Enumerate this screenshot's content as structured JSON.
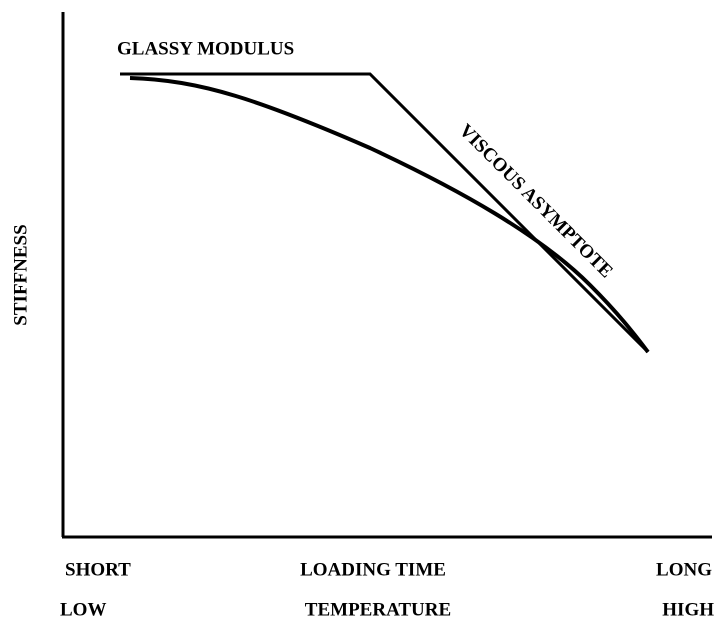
{
  "diagram": {
    "y_axis_label": "STIFFNESS",
    "curves": {
      "glassy": "GLASSY MODULUS",
      "viscous": "VISCOUS ASYMPTOTE"
    },
    "x_axis": {
      "row1": {
        "left": "SHORT",
        "center": "LOADING TIME",
        "right": "LONG"
      },
      "row2": {
        "left": "LOW",
        "center": "TEMPERATURE",
        "right": "HIGH"
      }
    }
  }
}
